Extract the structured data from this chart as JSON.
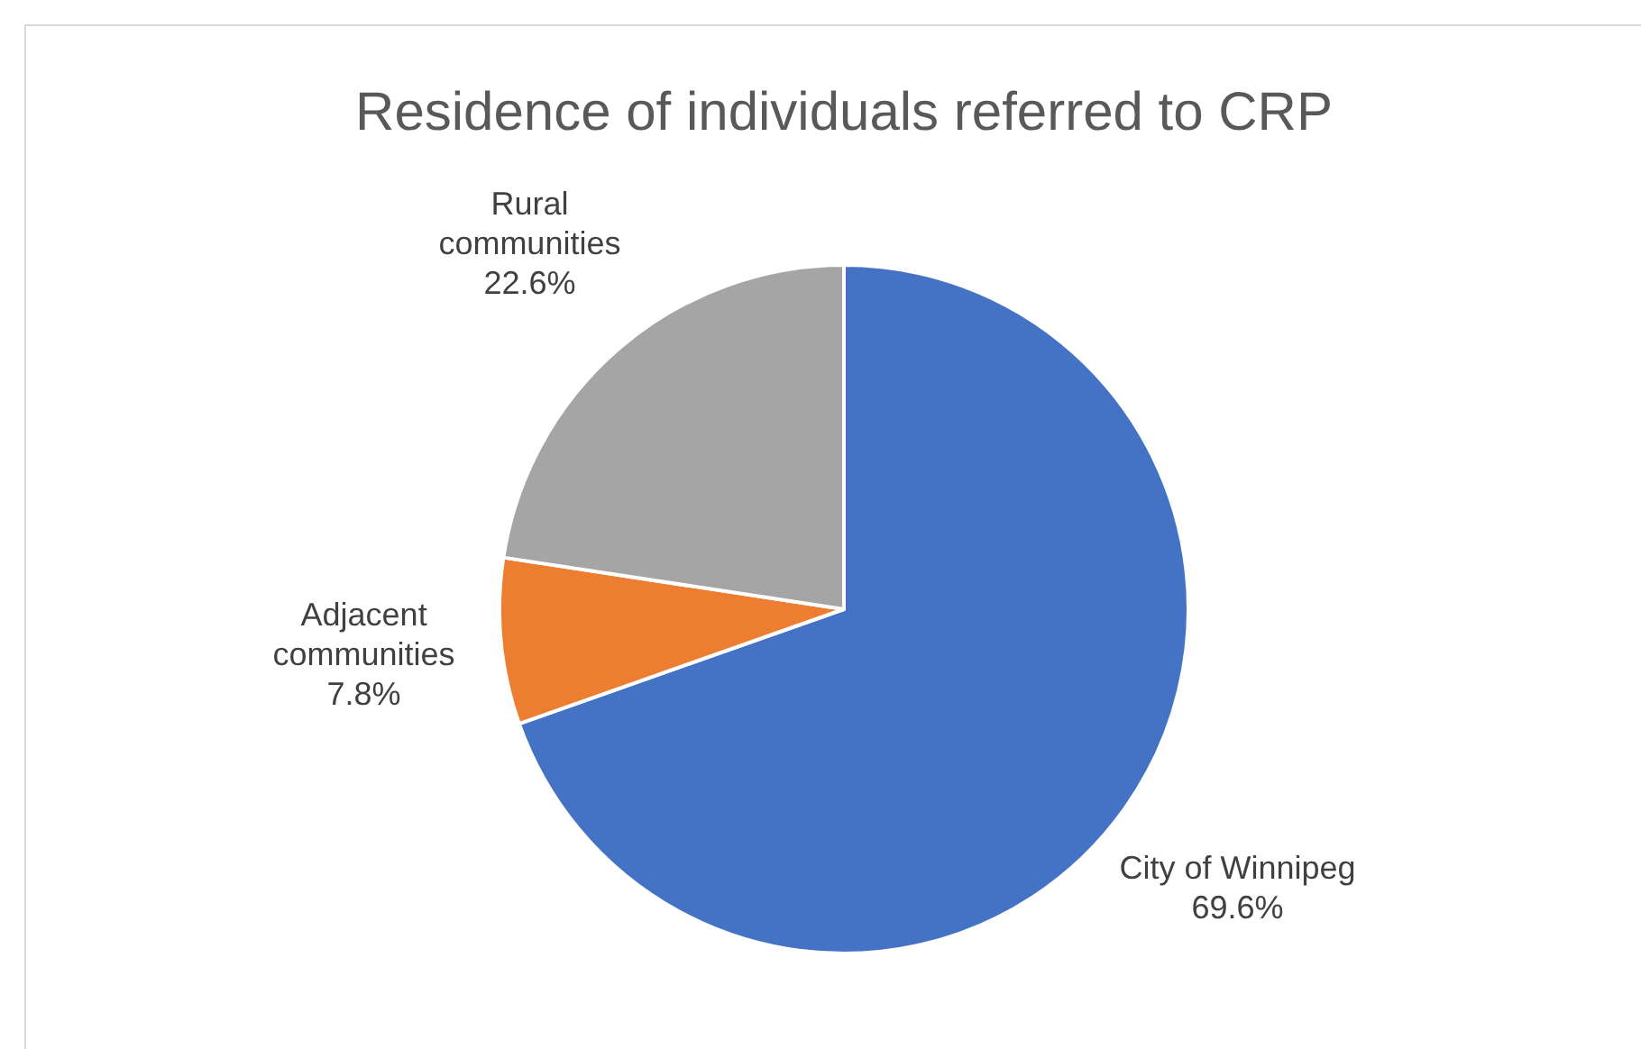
{
  "chart_data": {
    "type": "pie",
    "title": "Residence of individuals referred to CRP",
    "categories": [
      "City of Winnipeg",
      "Adjacent communities",
      "Rural communities"
    ],
    "values": [
      69.6,
      7.8,
      22.6
    ],
    "colors": [
      "#4472c4",
      "#ed7d31",
      "#a5a5a5"
    ],
    "value_labels": [
      "69.6%",
      "7.8%",
      "22.6%"
    ],
    "legend": false
  }
}
